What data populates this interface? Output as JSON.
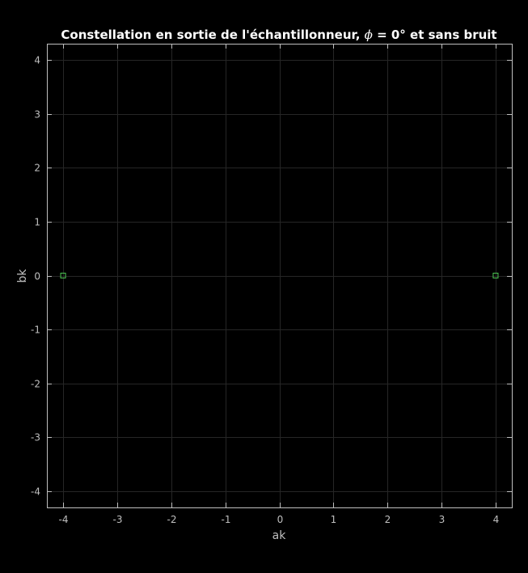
{
  "chart_data": {
    "type": "scatter",
    "title_prefix": "Constellation en sortie de l'échantillonneur, ",
    "title_symbol": "ϕ",
    "title_suffix": " = 0° et sans bruit",
    "xlabel": "ak",
    "ylabel": "bk",
    "xlim": [
      -4.3,
      4.3
    ],
    "ylim": [
      -4.3,
      4.3
    ],
    "xticks": [
      -4,
      -3,
      -2,
      -1,
      0,
      1,
      2,
      3,
      4
    ],
    "yticks": [
      -4,
      -3,
      -2,
      -1,
      0,
      1,
      2,
      3,
      4
    ],
    "grid": true,
    "marker": "square",
    "background_color": "#000000",
    "axis_color": "#bfbfbf",
    "grid_color": "#262626",
    "point_color": "#4cc552",
    "points": [
      {
        "x": -4,
        "y": 0
      },
      {
        "x": 4,
        "y": 0
      }
    ]
  }
}
